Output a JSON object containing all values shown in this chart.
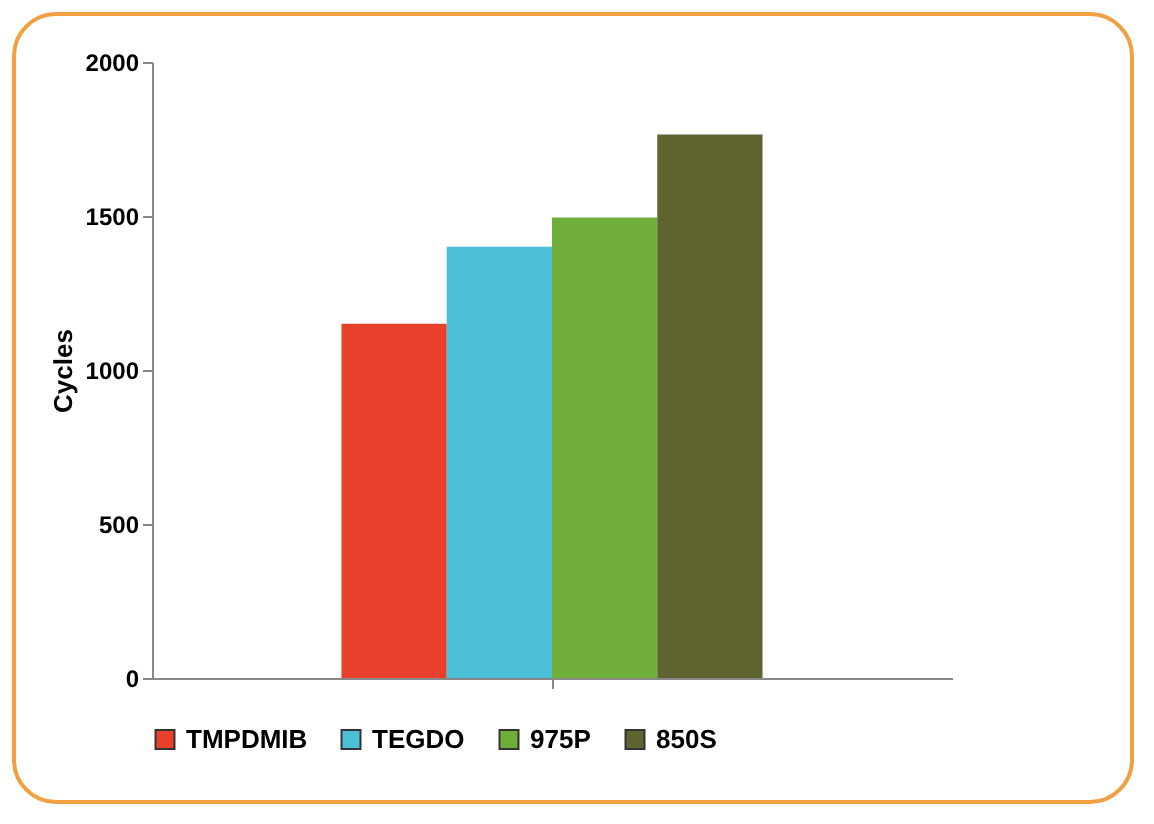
{
  "chart_data": {
    "type": "bar",
    "ylabel": "Cycles",
    "categories": [
      null
    ],
    "series": [
      {
        "name": "TMPDMIB",
        "color": "#e8402a",
        "values": [
          1150
        ]
      },
      {
        "name": "TEGDO",
        "color": "#4bbfd6",
        "values": [
          1400
        ]
      },
      {
        "name": "975P",
        "color": "#6fae38",
        "values": [
          1495
        ]
      },
      {
        "name": "850S",
        "color": "#5f6430",
        "values": [
          1765
        ]
      }
    ],
    "ylim": [
      0,
      2000
    ],
    "yticks": [
      0,
      500,
      1000,
      1500,
      2000
    ],
    "grid": false,
    "legend": "bottom"
  }
}
